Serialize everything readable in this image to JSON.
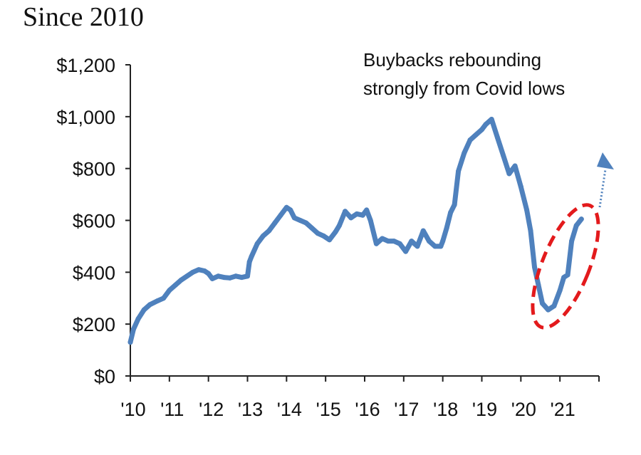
{
  "chart_data": {
    "type": "line",
    "title": "Since 2010",
    "xlabel": "",
    "ylabel": "",
    "xlim": [
      2010.0,
      2022.0
    ],
    "ylim": [
      0,
      1200
    ],
    "y_ticks": [
      0,
      200,
      400,
      600,
      800,
      1000,
      1200
    ],
    "y_tick_labels": [
      "$0",
      "$200",
      "$400",
      "$600",
      "$800",
      "$1,000",
      "$1,200"
    ],
    "x_ticks": [
      2010,
      2011,
      2012,
      2013,
      2014,
      2015,
      2016,
      2017,
      2018,
      2019,
      2020,
      2021
    ],
    "x_tick_labels": [
      "'10",
      "'11",
      "'12",
      "'13",
      "'14",
      "'15",
      "'16",
      "'17",
      "'18",
      "'19",
      "'20",
      "'21"
    ],
    "grid": false,
    "legend": "none",
    "series": [
      {
        "color": "#4f81bd",
        "x": [
          2010.0,
          2010.08,
          2010.2,
          2010.35,
          2010.5,
          2010.7,
          2010.85,
          2011.0,
          2011.15,
          2011.3,
          2011.45,
          2011.6,
          2011.75,
          2011.9,
          2012.0,
          2012.1,
          2012.25,
          2012.4,
          2012.55,
          2012.7,
          2012.85,
          2013.0,
          2013.05,
          2013.1,
          2013.25,
          2013.4,
          2013.55,
          2013.7,
          2013.85,
          2014.0,
          2014.1,
          2014.2,
          2014.35,
          2014.5,
          2014.65,
          2014.8,
          2014.95,
          2015.1,
          2015.25,
          2015.35,
          2015.5,
          2015.65,
          2015.8,
          2015.95,
          2016.05,
          2016.15,
          2016.3,
          2016.45,
          2016.6,
          2016.75,
          2016.9,
          2017.05,
          2017.2,
          2017.35,
          2017.5,
          2017.65,
          2017.8,
          2017.95,
          2018.0,
          2018.1,
          2018.2,
          2018.3,
          2018.4,
          2018.55,
          2018.7,
          2018.85,
          2019.0,
          2019.1,
          2019.25,
          2019.4,
          2019.55,
          2019.7,
          2019.85,
          2020.0,
          2020.15,
          2020.25,
          2020.35,
          2020.45,
          2020.55,
          2020.7,
          2020.85,
          2021.0,
          2021.1,
          2021.2,
          2021.3,
          2021.42,
          2021.55
        ],
        "y": [
          130,
          180,
          220,
          255,
          275,
          290,
          300,
          330,
          350,
          370,
          385,
          400,
          410,
          405,
          395,
          375,
          385,
          380,
          378,
          385,
          380,
          385,
          440,
          460,
          510,
          540,
          560,
          590,
          620,
          650,
          640,
          610,
          600,
          590,
          570,
          550,
          540,
          525,
          555,
          580,
          635,
          610,
          625,
          620,
          640,
          600,
          510,
          530,
          520,
          520,
          510,
          480,
          520,
          500,
          560,
          520,
          500,
          500,
          520,
          570,
          630,
          660,
          790,
          860,
          910,
          930,
          950,
          970,
          990,
          920,
          850,
          780,
          810,
          730,
          640,
          560,
          420,
          350,
          280,
          255,
          270,
          330,
          380,
          390,
          520,
          580,
          605
        ]
      }
    ],
    "annotations": [
      {
        "line1": "Buybacks rebounding",
        "line2": "strongly from Covid lows"
      }
    ]
  }
}
